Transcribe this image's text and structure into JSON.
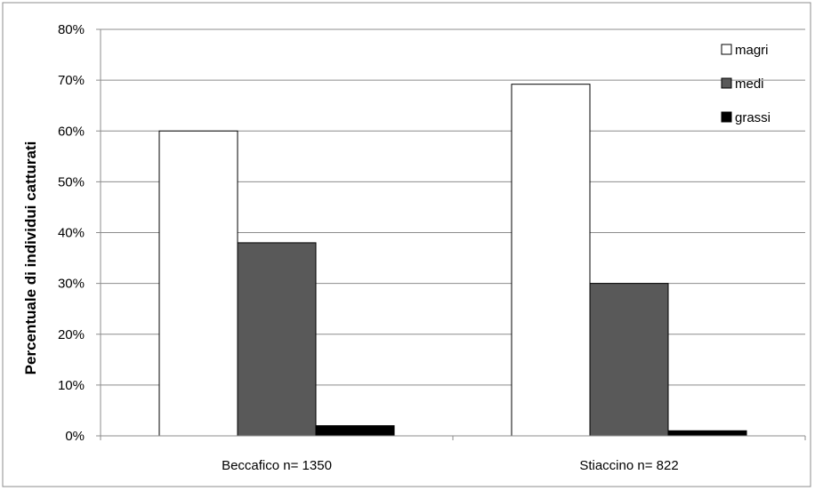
{
  "chart_data": {
    "type": "bar",
    "categories": [
      "Beccafico n= 1350",
      "Stiaccino n= 822"
    ],
    "series": [
      {
        "name": "magri",
        "values": [
          60,
          69.2
        ],
        "color": "#ffffff"
      },
      {
        "name": "medi",
        "values": [
          38,
          30
        ],
        "color": "#595959"
      },
      {
        "name": "grassi",
        "values": [
          2,
          1
        ],
        "color": "#000000"
      }
    ],
    "ylabel": "Percentuale di individui catturati",
    "ylim": [
      0,
      80
    ],
    "yticks": [
      "0%",
      "10%",
      "20%",
      "30%",
      "40%",
      "50%",
      "60%",
      "70%",
      "80%"
    ],
    "grid": true,
    "legend_position": "top-right"
  }
}
